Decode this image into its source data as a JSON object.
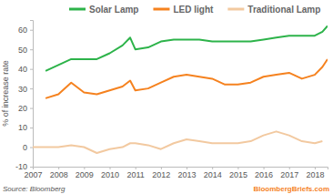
{
  "chart_data": {
    "type": "line",
    "y_label": "% of increase rate",
    "source": "Source: Bloomberg",
    "credit": "BloombergBriefs.com",
    "x": [
      2007,
      2007.5,
      2008,
      2008.5,
      2009,
      2009.5,
      2010,
      2010.5,
      2010.8,
      2011,
      2011.5,
      2012,
      2012.5,
      2013,
      2013.5,
      2014,
      2014.5,
      2015,
      2015.5,
      2016,
      2016.5,
      2017,
      2017.5,
      2018,
      2018.3,
      2018.5
    ],
    "series": [
      {
        "name": "Solar Lamp",
        "color": "#2db34a",
        "values": [
          null,
          39,
          42,
          45,
          45,
          45,
          48,
          52,
          56,
          50,
          51,
          54,
          55,
          55,
          55,
          54,
          54,
          54,
          54,
          55,
          56,
          57,
          57,
          57,
          59,
          62
        ]
      },
      {
        "name": "LED light",
        "color": "#f5821f",
        "values": [
          null,
          25,
          27,
          33,
          28,
          27,
          29,
          31,
          34,
          29,
          30,
          33,
          36,
          37,
          36,
          35,
          32,
          32,
          33,
          36,
          37,
          38,
          35,
          37,
          41,
          45
        ]
      },
      {
        "name": "Traditional Lamp",
        "color": "#f2c9a0",
        "values": [
          0,
          0,
          0,
          1,
          0,
          -3,
          -1,
          0,
          2,
          2,
          1,
          -1,
          2,
          4,
          3,
          2,
          2,
          2,
          3,
          6,
          8,
          6,
          3,
          2,
          3,
          null
        ]
      }
    ],
    "xlim": [
      2007,
      2018.5
    ],
    "xticks": [
      2007,
      2008,
      2009,
      2010,
      2011,
      2012,
      2013,
      2014,
      2015,
      2016,
      2017,
      2018
    ],
    "ylim": [
      -10,
      65
    ],
    "yticks": [
      -10,
      0,
      10,
      20,
      30,
      40,
      50,
      60
    ],
    "grid": false,
    "legend": "top"
  }
}
